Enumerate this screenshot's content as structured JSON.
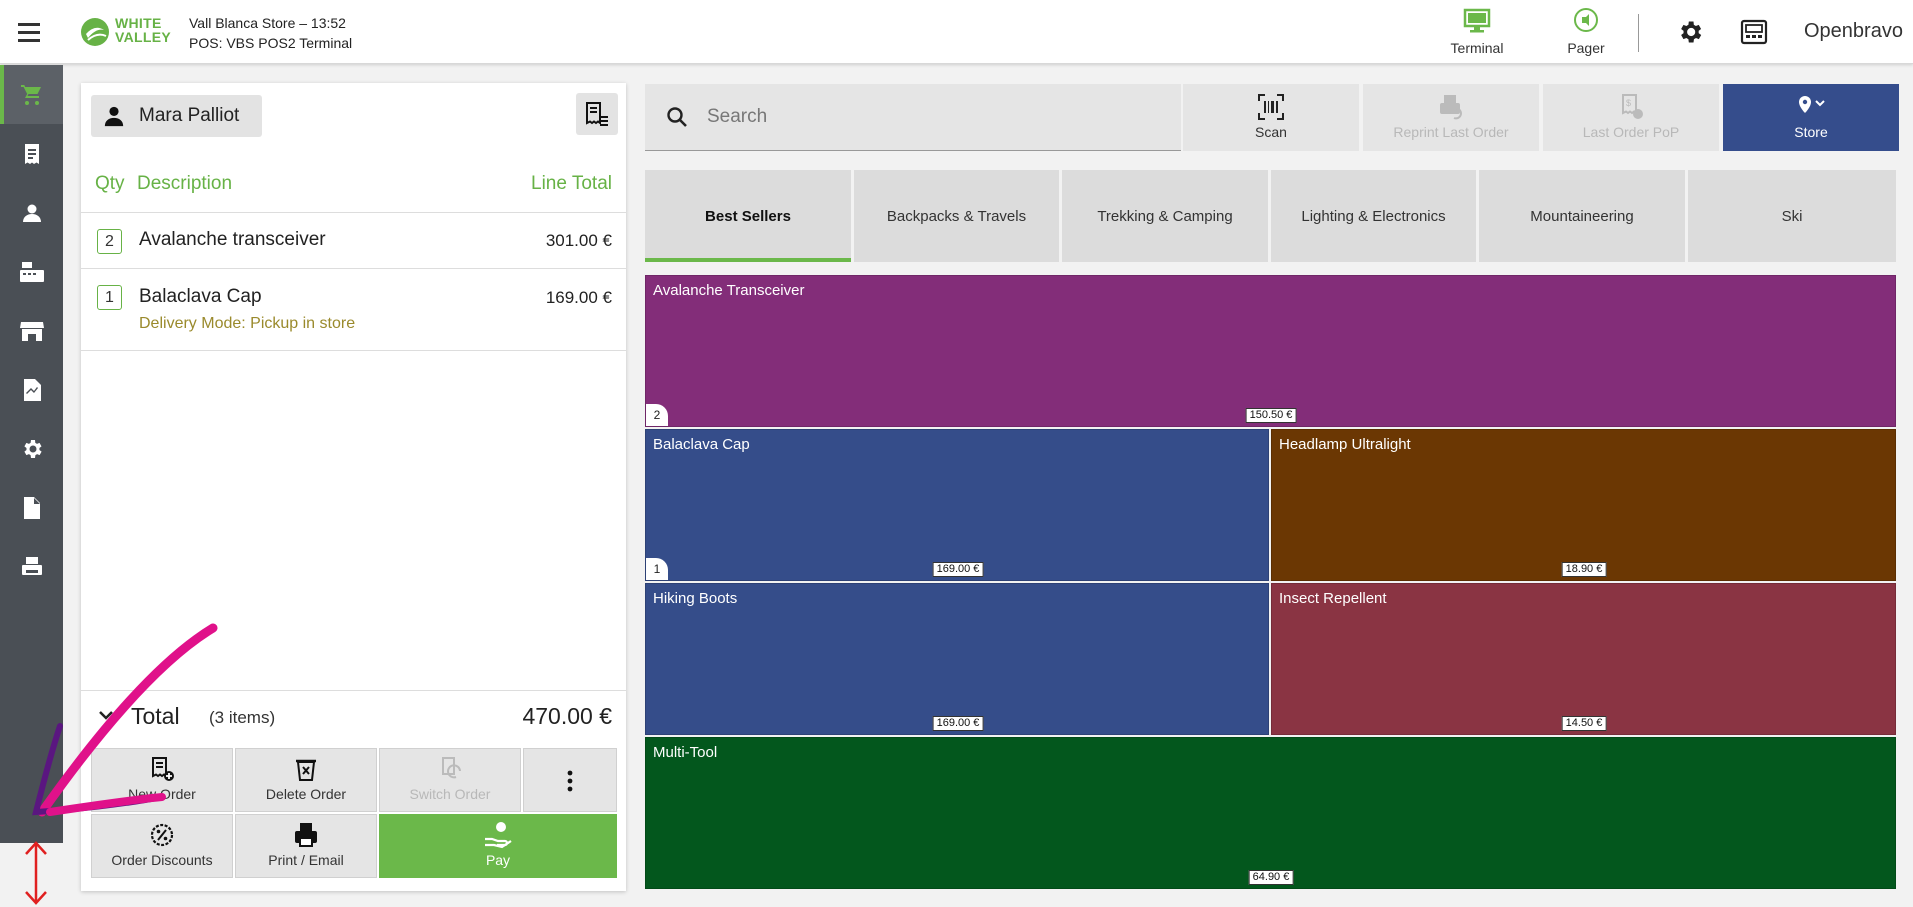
{
  "header": {
    "logo_text_line1": "WHITE",
    "logo_text_line2": "VALLEY",
    "store_line": "Vall Blanca Store – 13:52",
    "terminal_line": "POS: VBS POS2 Terminal",
    "terminal_label": "Terminal",
    "pager_label": "Pager",
    "user": "Openbravo"
  },
  "sidebar": {
    "items": [
      "cart-icon",
      "receipt-icon",
      "customer-icon",
      "cash-register-icon",
      "store-icon",
      "chart-icon",
      "settings-icon",
      "document-icon",
      "printer-icon"
    ]
  },
  "ticket": {
    "customer": "Mara Palliot",
    "columns": {
      "qty": "Qty",
      "description": "Description",
      "line_total": "Line Total"
    },
    "lines": [
      {
        "qty": "2",
        "description": "Avalanche transceiver",
        "total": "301.00 €",
        "note": ""
      },
      {
        "qty": "1",
        "description": "Balaclava Cap",
        "total": "169.00 €",
        "note": "Delivery Mode: Pickup in store"
      }
    ],
    "total_label": "Total",
    "items_count": "(3 items)",
    "total_amount": "470.00 €",
    "actions": {
      "new_order": "New Order",
      "delete_order": "Delete Order",
      "switch_order": "Switch Order",
      "order_discounts": "Order Discounts",
      "print_email": "Print / Email",
      "pay": "Pay"
    }
  },
  "toolbar": {
    "search_placeholder": "Search",
    "scan": "Scan",
    "reprint": "Reprint Last Order",
    "last_order_pop": "Last Order PoP",
    "store": "Store"
  },
  "categories": [
    "Best Sellers",
    "Backpacks & Travels",
    "Trekking & Camping",
    "Lighting & Electronics",
    "Mountaineering",
    "Ski"
  ],
  "active_category": "Best Sellers",
  "products": [
    {
      "name": "Avalanche Transceiver",
      "price": "150.50 €",
      "badge": "2",
      "color": "#832d79"
    },
    {
      "name": "Balaclava Cap",
      "price": "169.00 €",
      "badge": "1",
      "color": "#354d8a"
    },
    {
      "name": "Headlamp Ultralight",
      "price": "18.90 €",
      "badge": "",
      "color": "#6b3703"
    },
    {
      "name": "Hiking Boots",
      "price": "169.00 €",
      "badge": "",
      "color": "#354d8a"
    },
    {
      "name": "Insect Repellent",
      "price": "14.50 €",
      "badge": "",
      "color": "#8a3443"
    },
    {
      "name": "Multi-Tool",
      "price": "64.90 €",
      "badge": "",
      "color": "#03571d"
    }
  ],
  "colors": {
    "accent_green": "#6bb84a",
    "store_blue": "#354d8c",
    "sidebar": "#4a4f55"
  }
}
